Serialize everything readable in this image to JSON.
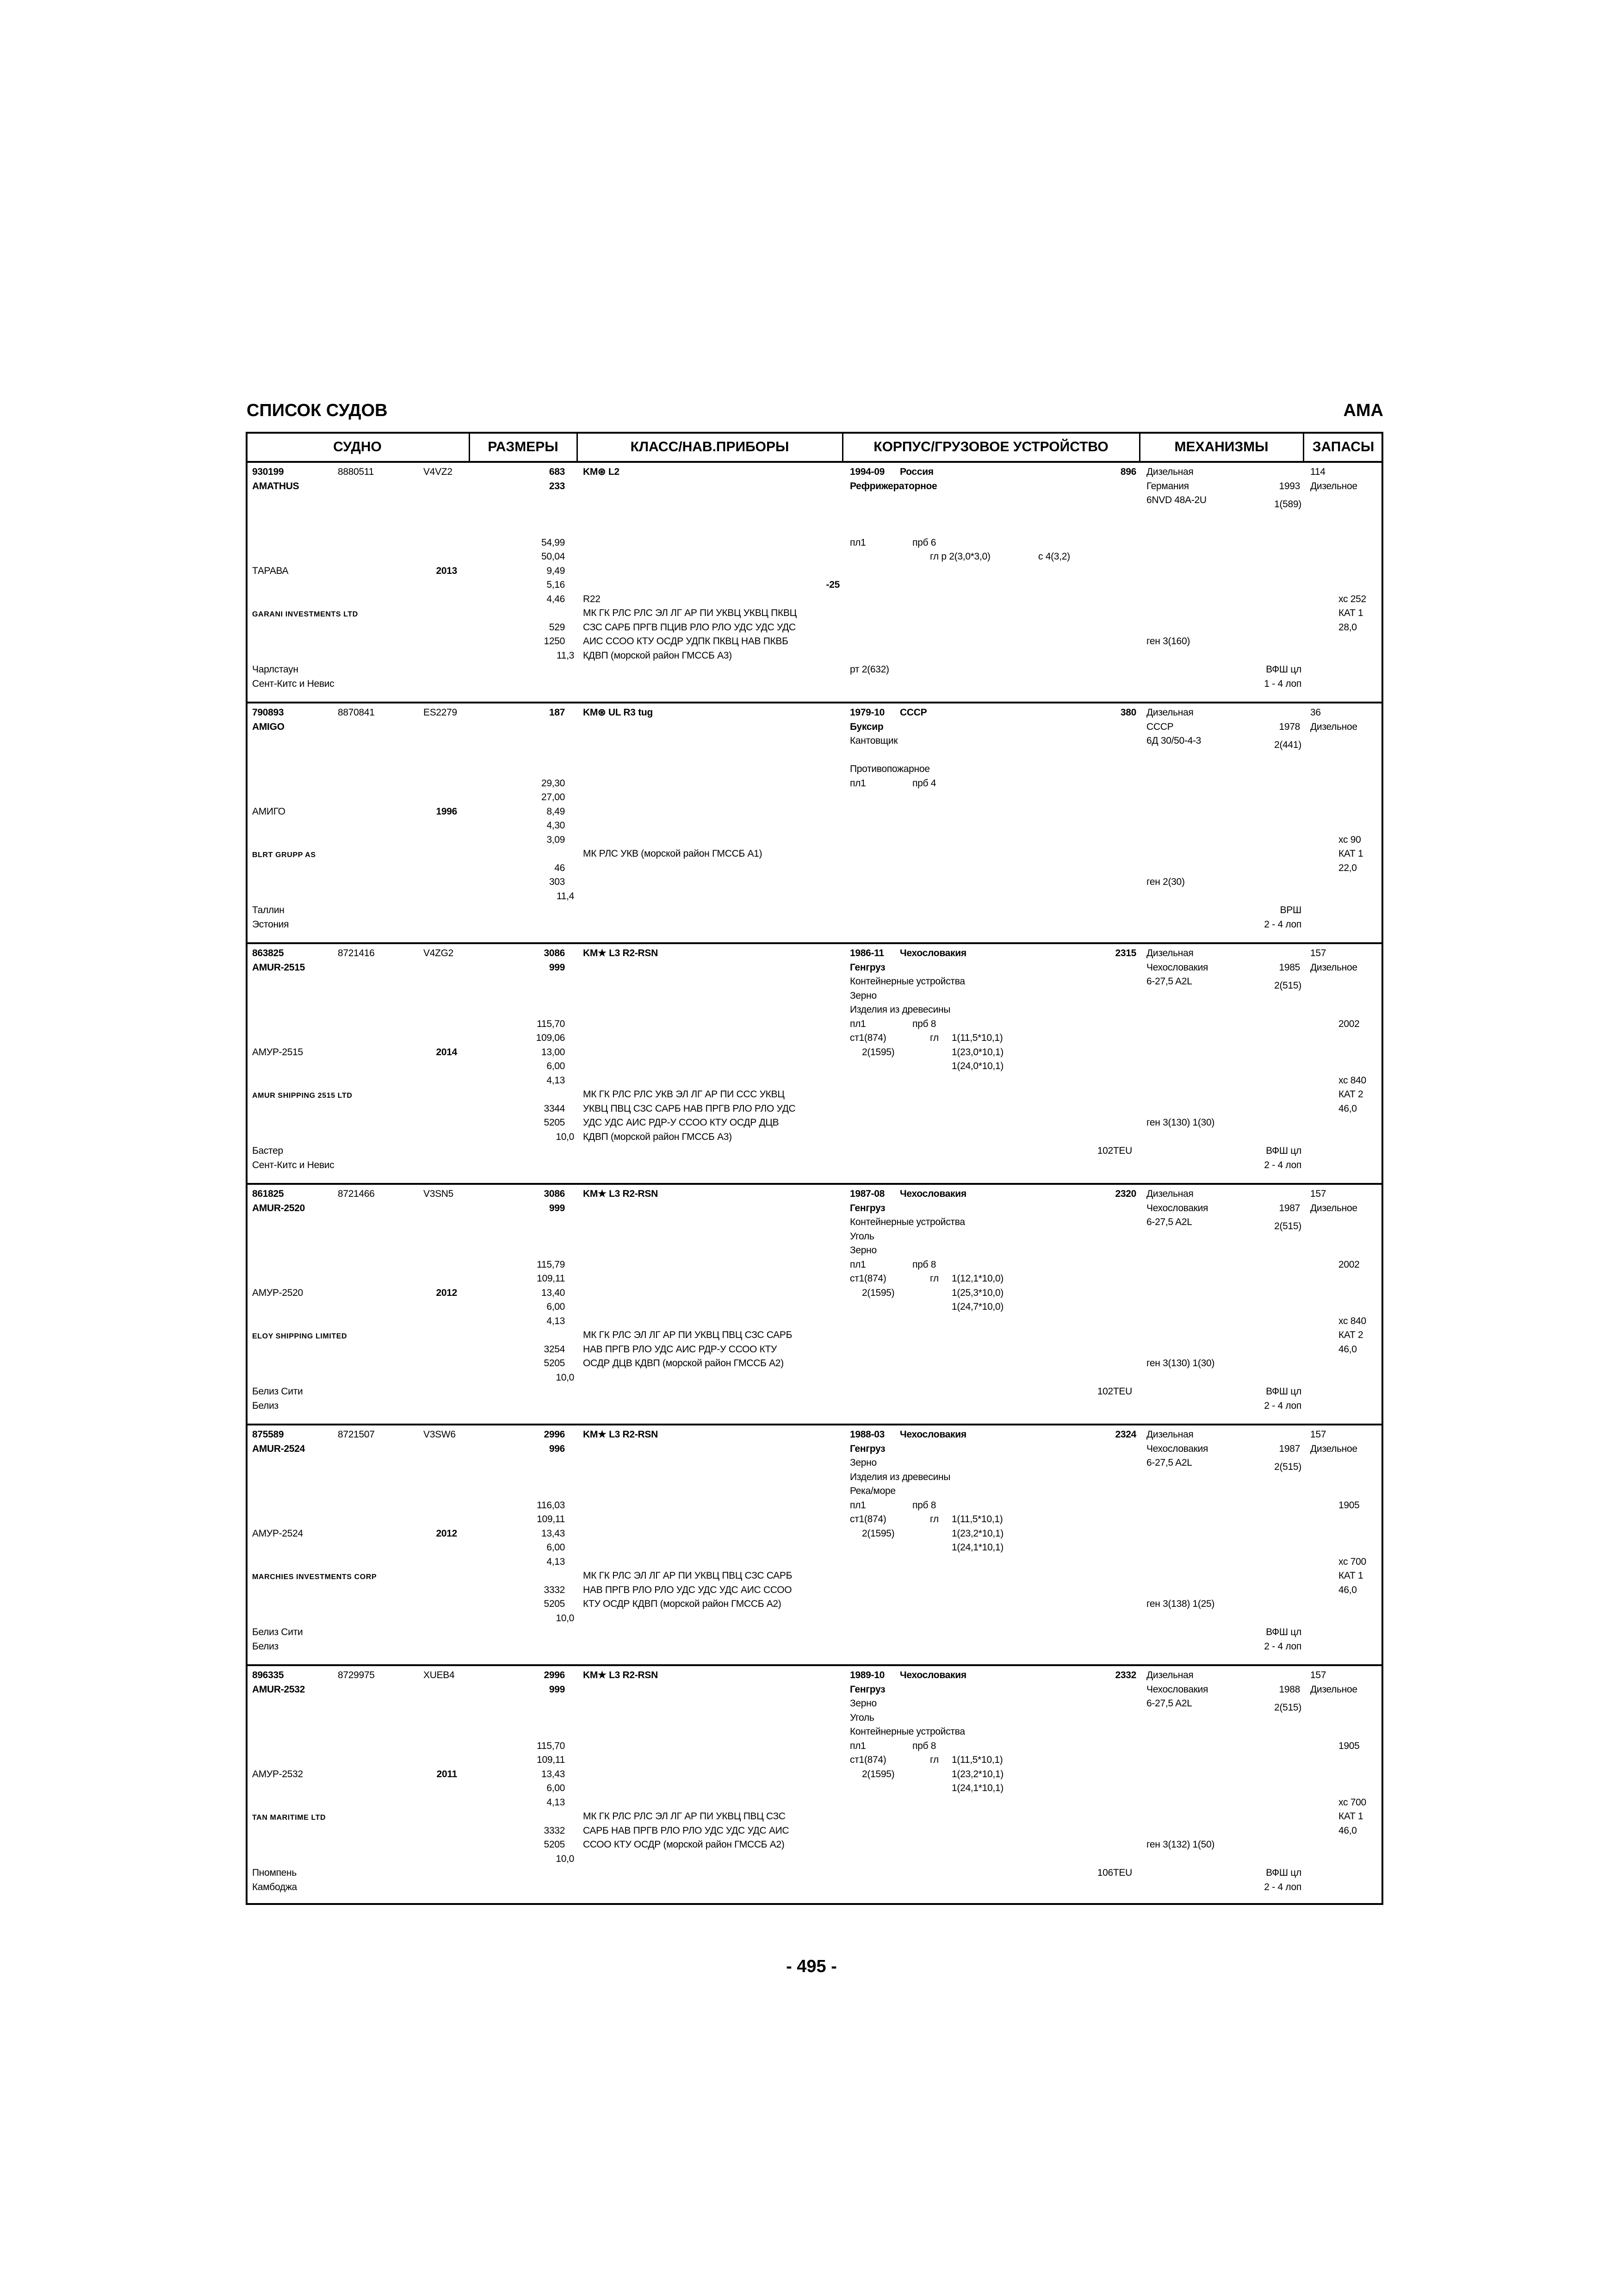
{
  "page": {
    "title": "СПИСОК СУДОВ",
    "section": "АМА",
    "page_number": "- 495 -"
  },
  "columns": [
    "СУДНО",
    "РАЗМЕРЫ",
    "КЛАСС/НАВ.ПРИБОРЫ",
    "КОРПУС/ГРУЗОВОЕ УСТРОЙСТВО",
    "МЕХАНИЗМЫ",
    "ЗАПАСЫ"
  ],
  "ships": [
    {
      "reg_no": "930199",
      "imo": "8880511",
      "call_sign": "V4VZ2",
      "name": "AMATHUS",
      "name_ru": "ТАРАВА",
      "year": "2013",
      "owner": "GARANI INVESTMENTS LTD",
      "port": "Чарлстаун",
      "flag": "Сент-Китс и Невис",
      "dims": {
        "gross": "683",
        "net": "233",
        "loa": "54,99",
        "lbp": "50,04",
        "breadth": "9,49",
        "depth": "5,16",
        "draft": "4,46",
        "dw": "529",
        "displacement": "1250",
        "speed": "11,3"
      },
      "class": {
        "notation": "KM⊛ L2",
        "ice": "-25",
        "extra": "R22",
        "equipment": [
          "МК ГК РЛС РЛС ЭЛ ЛГ АР ПИ УКВЦ УКВЦ ПКВЦ",
          "СЗС САРБ ПРГВ ПЦИВ РЛО РЛО УДС УДС УДС",
          "АИС ССОО КТУ ОСДР УДПК ПКВЦ НАВ ПКВБ",
          "КДВП (морской район ГМССБ А3)"
        ]
      },
      "hull": {
        "built": "1994-09",
        "country": "Россия",
        "type": "Рефрижераторное",
        "figure": "896",
        "teu": "",
        "lines": [
          [
            ""
          ],
          [
            ""
          ],
          [
            ""
          ],
          [
            "пл1",
            "",
            "прб 6"
          ],
          [
            "",
            "",
            "",
            "гл р 2(3,0*3,0)",
            "",
            "с 4(3,2)"
          ],
          [
            ""
          ],
          [
            ""
          ],
          [
            ""
          ],
          [
            ""
          ],
          [
            ""
          ],
          [
            ""
          ],
          [
            ""
          ],
          [
            "рт 2(632)"
          ]
        ]
      },
      "machinery": {
        "type": "Дизельная",
        "country": "Германия",
        "year": "1993",
        "model": "6NVD 48A-2U",
        "engines": "1(589)",
        "generators": "ген 3(160)",
        "propeller": "ВФШ цл",
        "blades": "1 - 4 лоп"
      },
      "stores": {
        "fuel_qty": "114",
        "fuel_type": "Дизельное",
        "extra": "",
        "xc": "хс 252",
        "cat": "КАТ 1",
        "value": "28,0"
      }
    },
    {
      "reg_no": "790893",
      "imo": "8870841",
      "call_sign": "ES2279",
      "name": "AMIGO",
      "name_ru": "АМИГО",
      "year": "1996",
      "owner": "BLRT GRUPP AS",
      "port": "Таллин",
      "flag": "Эстония",
      "dims": {
        "gross": "187",
        "net": "",
        "loa": "29,30",
        "lbp": "27,00",
        "breadth": "8,49",
        "depth": "4,30",
        "draft": "3,09",
        "dw": "46",
        "displacement": "303",
        "speed": "11,4"
      },
      "class": {
        "notation": "KM⊛ UL R3 tug",
        "ice": "",
        "extra": "",
        "equipment": [
          "МК РЛС УКВ (морской район ГМССБ А1)"
        ]
      },
      "hull": {
        "built": "1979-10",
        "country": "СССР",
        "type": "Буксир",
        "figure": "380",
        "teu": "",
        "lines": [
          [
            "Кантовщик"
          ],
          [
            ""
          ],
          [
            "Противопожарное"
          ],
          [
            "пл1",
            "",
            "прб 4"
          ]
        ]
      },
      "machinery": {
        "type": "Дизельная",
        "country": "СССР",
        "year": "1978",
        "model": "6Д 30/50-4-3",
        "engines": "2(441)",
        "generators": "ген 2(30)",
        "propeller": "ВРШ",
        "blades": "2 - 4 лоп"
      },
      "stores": {
        "fuel_qty": "36",
        "fuel_type": "Дизельное",
        "extra": "",
        "xc": "хс 90",
        "cat": "КАТ 1",
        "value": "22,0"
      }
    },
    {
      "reg_no": "863825",
      "imo": "8721416",
      "call_sign": "V4ZG2",
      "name": "AMUR-2515",
      "name_ru": "АМУР-2515",
      "year": "2014",
      "owner": "AMUR SHIPPING 2515 LTD",
      "port": "Бастер",
      "flag": "Сент-Китс и Невис",
      "dims": {
        "gross": "3086",
        "net": "999",
        "loa": "115,70",
        "lbp": "109,06",
        "breadth": "13,00",
        "depth": "6,00",
        "draft": "4,13",
        "dw": "3344",
        "displacement": "5205",
        "speed": "10,0"
      },
      "class": {
        "notation": "KM★ L3 R2-RSN",
        "ice": "",
        "extra": "",
        "equipment": [
          "МК ГК РЛС РЛС УКВ ЭЛ ЛГ АР ПИ ССС УКВЦ",
          "УКВЦ ПВЦ СЗС САРБ НАВ ПРГВ РЛО РЛО УДС",
          "УДС УДС АИС РДР-У ССОО КТУ ОСДР ДЦВ",
          "КДВП (морской район ГМССБ А3)"
        ]
      },
      "hull": {
        "built": "1986-11",
        "country": "Чехословакия",
        "type": "Генгруз",
        "figure": "2315",
        "teu": "102TEU",
        "lines": [
          [
            "Контейнерные устройства"
          ],
          [
            "Зерно"
          ],
          [
            "Изделия из древесины"
          ],
          [
            "пл1",
            "",
            "прб 8"
          ],
          [
            "ст1(874)",
            "",
            "",
            "гл",
            "1(11,5*10,1)"
          ],
          [
            "",
            "2(1595)",
            "",
            "",
            "1(23,0*10,1)"
          ],
          [
            "",
            "",
            "",
            "",
            "1(24,0*10,1)"
          ]
        ]
      },
      "machinery": {
        "type": "Дизельная",
        "country": "Чехословакия",
        "year": "1985",
        "model": "6-27,5 A2L",
        "engines": "2(515)",
        "generators": "ген 3(130)  1(30)",
        "propeller": "ВФШ цл",
        "blades": "2 - 4 лоп"
      },
      "stores": {
        "fuel_qty": "157",
        "fuel_type": "Дизельное",
        "extra": "2002",
        "xc": "хс 840",
        "cat": "КАТ 2",
        "value": "46,0"
      }
    },
    {
      "reg_no": "861825",
      "imo": "8721466",
      "call_sign": "V3SN5",
      "name": "AMUR-2520",
      "name_ru": "АМУР-2520",
      "year": "2012",
      "owner": "ELOY SHIPPING LIMITED",
      "port": "Белиз Сити",
      "flag": "Белиз",
      "dims": {
        "gross": "3086",
        "net": "999",
        "loa": "115,79",
        "lbp": "109,11",
        "breadth": "13,40",
        "depth": "6,00",
        "draft": "4,13",
        "dw": "3254",
        "displacement": "5205",
        "speed": "10,0"
      },
      "class": {
        "notation": "KM★ L3 R2-RSN",
        "ice": "",
        "extra": "",
        "equipment": [
          "МК ГК РЛС ЭЛ ЛГ АР ПИ УКВЦ ПВЦ СЗС САРБ",
          "НАВ ПРГВ РЛО УДС АИС РДР-У ССОО КТУ",
          "ОСДР ДЦВ КДВП (морской район ГМССБ А2)"
        ]
      },
      "hull": {
        "built": "1987-08",
        "country": "Чехословакия",
        "type": "Генгруз",
        "figure": "2320",
        "teu": "102TEU",
        "lines": [
          [
            "Контейнерные устройства"
          ],
          [
            "Уголь"
          ],
          [
            "Зерно"
          ],
          [
            "пл1",
            "",
            "прб 8"
          ],
          [
            "ст1(874)",
            "",
            "",
            "гл",
            "1(12,1*10,0)"
          ],
          [
            "",
            "2(1595)",
            "",
            "",
            "1(25,3*10,0)"
          ],
          [
            "",
            "",
            "",
            "",
            "1(24,7*10,0)"
          ]
        ]
      },
      "machinery": {
        "type": "Дизельная",
        "country": "Чехословакия",
        "year": "1987",
        "model": "6-27,5 A2L",
        "engines": "2(515)",
        "generators": "ген 3(130)  1(30)",
        "propeller": "ВФШ цл",
        "blades": "2 - 4 лоп"
      },
      "stores": {
        "fuel_qty": "157",
        "fuel_type": "Дизельное",
        "extra": "2002",
        "xc": "хс 840",
        "cat": "КАТ 2",
        "value": "46,0"
      }
    },
    {
      "reg_no": "875589",
      "imo": "8721507",
      "call_sign": "V3SW6",
      "name": "AMUR-2524",
      "name_ru": "АМУР-2524",
      "year": "2012",
      "owner": "MARCHIES INVESTMENTS CORP",
      "port": "Белиз Сити",
      "flag": "Белиз",
      "dims": {
        "gross": "2996",
        "net": "996",
        "loa": "116,03",
        "lbp": "109,11",
        "breadth": "13,43",
        "depth": "6,00",
        "draft": "4,13",
        "dw": "3332",
        "displacement": "5205",
        "speed": "10,0"
      },
      "class": {
        "notation": "KM★ L3 R2-RSN",
        "ice": "",
        "extra": "",
        "equipment": [
          "МК ГК РЛС ЭЛ ЛГ АР ПИ УКВЦ ПВЦ СЗС САРБ",
          "НАВ ПРГВ РЛО РЛО УДС УДС УДС АИС ССОО",
          "КТУ ОСДР КДВП (морской район ГМССБ А2)"
        ]
      },
      "hull": {
        "built": "1988-03",
        "country": "Чехословакия",
        "type": "Генгруз",
        "figure": "2324",
        "teu": "",
        "lines": [
          [
            "Зерно"
          ],
          [
            "Изделия из древесины"
          ],
          [
            "Река/море"
          ],
          [
            "пл1",
            "",
            "прб 8"
          ],
          [
            "ст1(874)",
            "",
            "",
            "гл",
            "1(11,5*10,1)"
          ],
          [
            "",
            "2(1595)",
            "",
            "",
            "1(23,2*10,1)"
          ],
          [
            "",
            "",
            "",
            "",
            "1(24,1*10,1)"
          ]
        ]
      },
      "machinery": {
        "type": "Дизельная",
        "country": "Чехословакия",
        "year": "1987",
        "model": "6-27,5 A2L",
        "engines": "2(515)",
        "generators": "ген 3(138)  1(25)",
        "propeller": "ВФШ цл",
        "blades": "2 - 4 лоп"
      },
      "stores": {
        "fuel_qty": "157",
        "fuel_type": "Дизельное",
        "extra": "1905",
        "xc": "хс 700",
        "cat": "КАТ 1",
        "value": "46,0"
      }
    },
    {
      "reg_no": "896335",
      "imo": "8729975",
      "call_sign": "XUEB4",
      "name": "AMUR-2532",
      "name_ru": "АМУР-2532",
      "year": "2011",
      "owner": "TAN MARITIME LTD",
      "port": "Пномпень",
      "flag": "Камбоджа",
      "dims": {
        "gross": "2996",
        "net": "999",
        "loa": "115,70",
        "lbp": "109,11",
        "breadth": "13,43",
        "depth": "6,00",
        "draft": "4,13",
        "dw": "3332",
        "displacement": "5205",
        "speed": "10,0"
      },
      "class": {
        "notation": "KM★ L3 R2-RSN",
        "ice": "",
        "extra": "",
        "equipment": [
          "МК ГК РЛС РЛС ЭЛ ЛГ АР ПИ УКВЦ ПВЦ СЗС",
          "САРБ НАВ ПРГВ РЛО РЛО УДС УДС УДС АИС",
          "ССОО КТУ ОСДР (морской район ГМССБ А2)"
        ]
      },
      "hull": {
        "built": "1989-10",
        "country": "Чехословакия",
        "type": "Генгруз",
        "figure": "2332",
        "teu": "106TEU",
        "lines": [
          [
            "Зерно"
          ],
          [
            "Уголь"
          ],
          [
            "Контейнерные устройства"
          ],
          [
            "пл1",
            "",
            "прб 8"
          ],
          [
            "ст1(874)",
            "",
            "",
            "гл",
            "1(11,5*10,1)"
          ],
          [
            "",
            "2(1595)",
            "",
            "",
            "1(23,2*10,1)"
          ],
          [
            "",
            "",
            "",
            "",
            "1(24,1*10,1)"
          ]
        ]
      },
      "machinery": {
        "type": "Дизельная",
        "country": "Чехословакия",
        "year": "1988",
        "model": "6-27,5 A2L",
        "engines": "2(515)",
        "generators": "ген 3(132)  1(50)",
        "propeller": "ВФШ цл",
        "blades": "2 - 4 лоп"
      },
      "stores": {
        "fuel_qty": "157",
        "fuel_type": "Дизельное",
        "extra": "1905",
        "xc": "хс 700",
        "cat": "КАТ 1",
        "value": "46,0"
      }
    }
  ]
}
